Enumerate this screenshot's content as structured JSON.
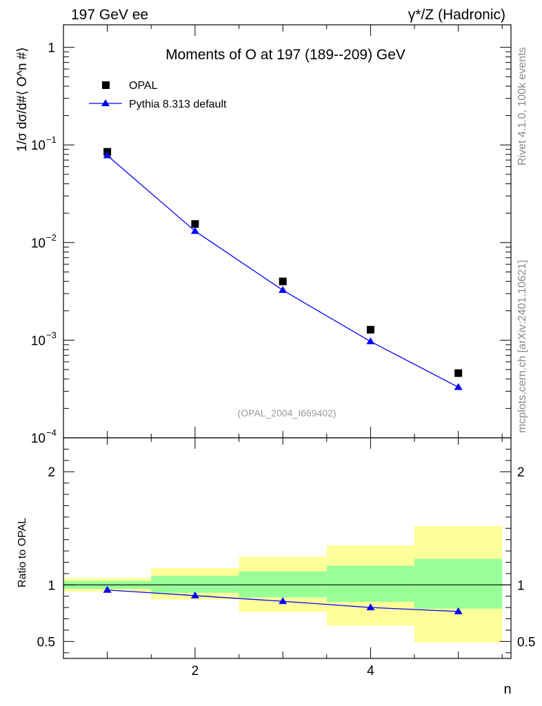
{
  "header": {
    "left_title": "197 GeV ee",
    "right_title": "γ*/Z (Hadronic)"
  },
  "side_labels": {
    "rivet": "Rivet 4.1.0,  100k events",
    "mcplots": "mcplots.cern.ch [arXiv:2401.10621]"
  },
  "chart_data": [
    {
      "type": "scatter",
      "title": "Moments of O at 197 (189--209) GeV",
      "ylabel": "1/σ  dσ/d#⟨ O^n #⟩",
      "yscale": "log",
      "ylim": [
        0.0001,
        1.7
      ],
      "xlim": [
        0.5,
        5.6
      ],
      "annotation": "(OPAL_2004_I669402)",
      "x": [
        1,
        2,
        3,
        4,
        5
      ],
      "series": [
        {
          "name": "OPAL",
          "marker": "square",
          "color": "#000000",
          "values": [
            0.085,
            0.0155,
            0.004,
            0.00128,
            0.00046
          ]
        },
        {
          "name": "Pythia 8.313 default",
          "marker": "triangle",
          "line": true,
          "color": "#0000ff",
          "values": [
            0.078,
            0.0131,
            0.00325,
            0.00097,
            0.00033
          ]
        }
      ],
      "y_ticks": [
        {
          "value": 1,
          "label": "1"
        },
        {
          "value": 0.1,
          "label": "10",
          "exp": "−1"
        },
        {
          "value": 0.01,
          "label": "10",
          "exp": "−2"
        },
        {
          "value": 0.001,
          "label": "10",
          "exp": "−3"
        },
        {
          "value": 0.0001,
          "label": "10",
          "exp": "−4"
        }
      ]
    },
    {
      "type": "line",
      "ylabel": "Ratio to OPAL",
      "xlabel": "n",
      "ylim": [
        0.35,
        2.3
      ],
      "xlim": [
        0.5,
        5.6
      ],
      "x_ticks": [
        2,
        4
      ],
      "y_ticks": [
        0.5,
        1,
        2
      ],
      "bands": [
        {
          "xlo": 0.5,
          "xhi": 1.5,
          "inner": [
            0.965,
            1.035
          ],
          "outer": [
            0.94,
            1.06
          ]
        },
        {
          "xlo": 1.5,
          "xhi": 2.5,
          "inner": [
            0.93,
            1.08
          ],
          "outer": [
            0.87,
            1.15
          ]
        },
        {
          "xlo": 2.5,
          "xhi": 3.5,
          "inner": [
            0.89,
            1.12
          ],
          "outer": [
            0.76,
            1.25
          ]
        },
        {
          "xlo": 3.5,
          "xhi": 4.5,
          "inner": [
            0.85,
            1.17
          ],
          "outer": [
            0.64,
            1.35
          ]
        },
        {
          "xlo": 4.5,
          "xhi": 5.5,
          "inner": [
            0.79,
            1.23
          ],
          "outer": [
            0.49,
            1.52
          ]
        }
      ],
      "series": [
        {
          "name": "Pythia 8.313 default",
          "color": "#0000ff",
          "x": [
            1,
            2,
            3,
            4,
            5
          ],
          "values": [
            0.955,
            0.905,
            0.855,
            0.8,
            0.765
          ]
        }
      ],
      "reference": 1,
      "band_colors": {
        "inner": "#99ff99",
        "outer": "#ffff99"
      }
    }
  ]
}
